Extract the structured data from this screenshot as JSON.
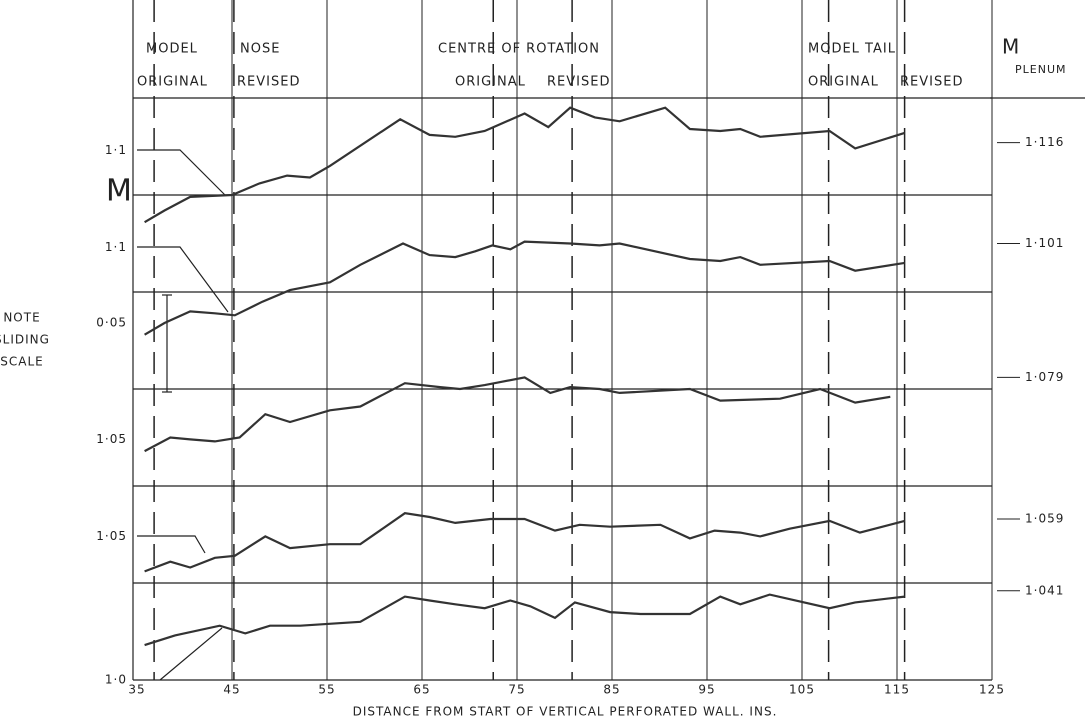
{
  "chart_data": {
    "type": "line",
    "x_label": "DISTANCE FROM START OF VERTICAL PERFORATED WALL. INS.",
    "y_label": "M",
    "xlim": [
      35,
      125
    ],
    "xticks": [
      35,
      45,
      55,
      65,
      75,
      85,
      95,
      105,
      115,
      125
    ],
    "ylim": [
      1.0,
      1.3
    ],
    "yticks": [
      {
        "value": 1.0,
        "label": "1·0"
      },
      {
        "value": 1.074,
        "label": "1·05"
      },
      {
        "value": 1.124,
        "label": "1·05"
      },
      {
        "value": 1.184,
        "label": "0·05"
      },
      {
        "value": 1.223,
        "label": "1·1"
      },
      {
        "value": 1.273,
        "label": "1·1"
      }
    ],
    "ygrid": [
      1.0,
      1.05,
      1.1,
      1.15,
      1.2,
      1.25,
      1.3
    ],
    "grid": true,
    "dashed_x": [
      36.8,
      45.2,
      72.5,
      80.8,
      107.8,
      115.8
    ],
    "header": {
      "nose": [
        "MODEL",
        "NOSE",
        "ORIGINAL",
        "REVISED"
      ],
      "centre": [
        "CENTRE OF ROTATION",
        "ORIGINAL",
        "REVISED"
      ],
      "tail": [
        "MODEL TAIL",
        "ORIGINAL",
        "REVISED"
      ],
      "plenum": [
        "M",
        "PLENUM"
      ]
    },
    "note": [
      "NOTE",
      "SLIDING",
      "SCALE"
    ],
    "plenum_labels": [
      "1·116",
      "1·101",
      "1·079",
      "1·059",
      "1·041"
    ],
    "plenum_y": [
      1.277,
      1.225,
      1.156,
      1.083,
      1.046
    ],
    "series": [
      {
        "color": "#333333",
        "x": [
          35.8,
          37.9,
          40.6,
          45.0,
          47.9,
          50.8,
          53.2,
          55.3,
          62.7,
          65.8,
          68.5,
          71.6,
          75.8,
          78.3,
          80.6,
          83.2,
          85.8,
          90.6,
          93.2,
          96.4,
          98.5,
          100.6,
          107.9,
          110.6,
          115.8
        ],
        "values": [
          1.236,
          1.242,
          1.249,
          1.25,
          1.256,
          1.26,
          1.259,
          1.265,
          1.289,
          1.281,
          1.28,
          1.283,
          1.292,
          1.285,
          1.295,
          1.29,
          1.288,
          1.295,
          1.284,
          1.283,
          1.284,
          1.28,
          1.283,
          1.274,
          1.282
        ]
      },
      {
        "color": "#333333",
        "x": [
          35.8,
          37.9,
          40.6,
          43.2,
          45.3,
          48.2,
          51.1,
          55.3,
          58.5,
          63.0,
          65.8,
          68.5,
          70.6,
          72.4,
          74.3,
          75.8,
          80.6,
          83.7,
          85.8,
          93.2,
          96.4,
          98.5,
          100.6,
          107.9,
          110.6,
          115.8
        ],
        "values": [
          1.178,
          1.184,
          1.19,
          1.189,
          1.188,
          1.195,
          1.201,
          1.205,
          1.214,
          1.225,
          1.219,
          1.218,
          1.221,
          1.224,
          1.222,
          1.226,
          1.225,
          1.224,
          1.225,
          1.217,
          1.216,
          1.218,
          1.214,
          1.216,
          1.211,
          1.215
        ]
      },
      {
        "color": "#333333",
        "x": [
          35.8,
          38.5,
          40.6,
          43.2,
          45.8,
          48.5,
          51.1,
          55.3,
          58.5,
          63.2,
          66.9,
          69.0,
          71.6,
          75.8,
          78.5,
          80.6,
          83.7,
          85.8,
          93.2,
          96.4,
          102.7,
          106.9,
          110.6,
          114.3
        ],
        "values": [
          1.118,
          1.125,
          1.124,
          1.123,
          1.125,
          1.137,
          1.133,
          1.139,
          1.141,
          1.153,
          1.151,
          1.15,
          1.152,
          1.156,
          1.148,
          1.151,
          1.15,
          1.148,
          1.15,
          1.144,
          1.145,
          1.15,
          1.143,
          1.146
        ]
      },
      {
        "color": "#333333",
        "x": [
          35.8,
          38.5,
          40.6,
          43.2,
          45.3,
          48.5,
          51.1,
          55.3,
          58.5,
          63.2,
          65.8,
          68.5,
          72.2,
          75.8,
          79.0,
          81.6,
          84.8,
          90.1,
          93.2,
          95.8,
          98.5,
          100.6,
          103.7,
          107.9,
          111.1,
          115.8
        ],
        "values": [
          1.056,
          1.061,
          1.058,
          1.063,
          1.064,
          1.074,
          1.068,
          1.07,
          1.07,
          1.086,
          1.084,
          1.081,
          1.083,
          1.083,
          1.077,
          1.08,
          1.079,
          1.08,
          1.073,
          1.077,
          1.076,
          1.074,
          1.078,
          1.082,
          1.076,
          1.082
        ]
      },
      {
        "color": "#333333",
        "x": [
          35.8,
          39.0,
          43.7,
          46.4,
          49.0,
          52.2,
          58.5,
          63.2,
          65.8,
          68.5,
          71.6,
          74.3,
          76.4,
          79.0,
          81.1,
          84.8,
          88.0,
          93.2,
          96.4,
          98.5,
          101.6,
          107.9,
          110.6,
          115.8
        ],
        "values": [
          1.018,
          1.023,
          1.028,
          1.024,
          1.028,
          1.028,
          1.03,
          1.043,
          1.041,
          1.039,
          1.037,
          1.041,
          1.038,
          1.032,
          1.04,
          1.035,
          1.034,
          1.034,
          1.043,
          1.039,
          1.044,
          1.037,
          1.04,
          1.043
        ]
      }
    ]
  }
}
